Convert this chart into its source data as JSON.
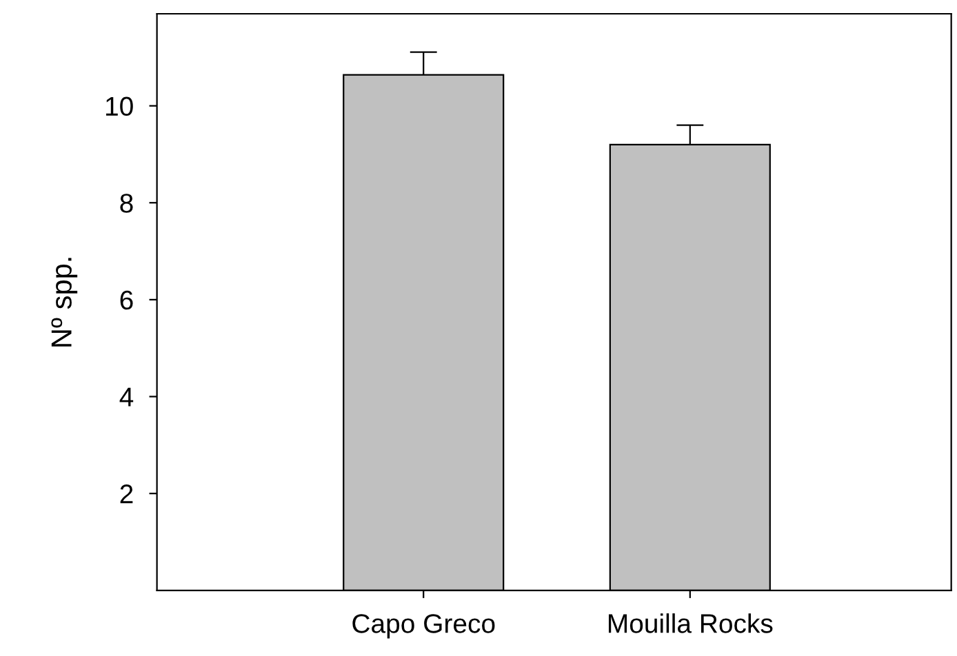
{
  "chart_data": {
    "type": "bar",
    "ylabel": "Nº spp.",
    "categories": [
      "Capo Greco",
      "Mouilla Rocks"
    ],
    "values": [
      10.64,
      9.2
    ],
    "errors": [
      0.47,
      0.4
    ],
    "color": "#c0c0c0",
    "ylim": [
      0,
      11.9
    ],
    "yticks": [
      2,
      4,
      6,
      8,
      10
    ],
    "grid": false,
    "legend": false
  }
}
